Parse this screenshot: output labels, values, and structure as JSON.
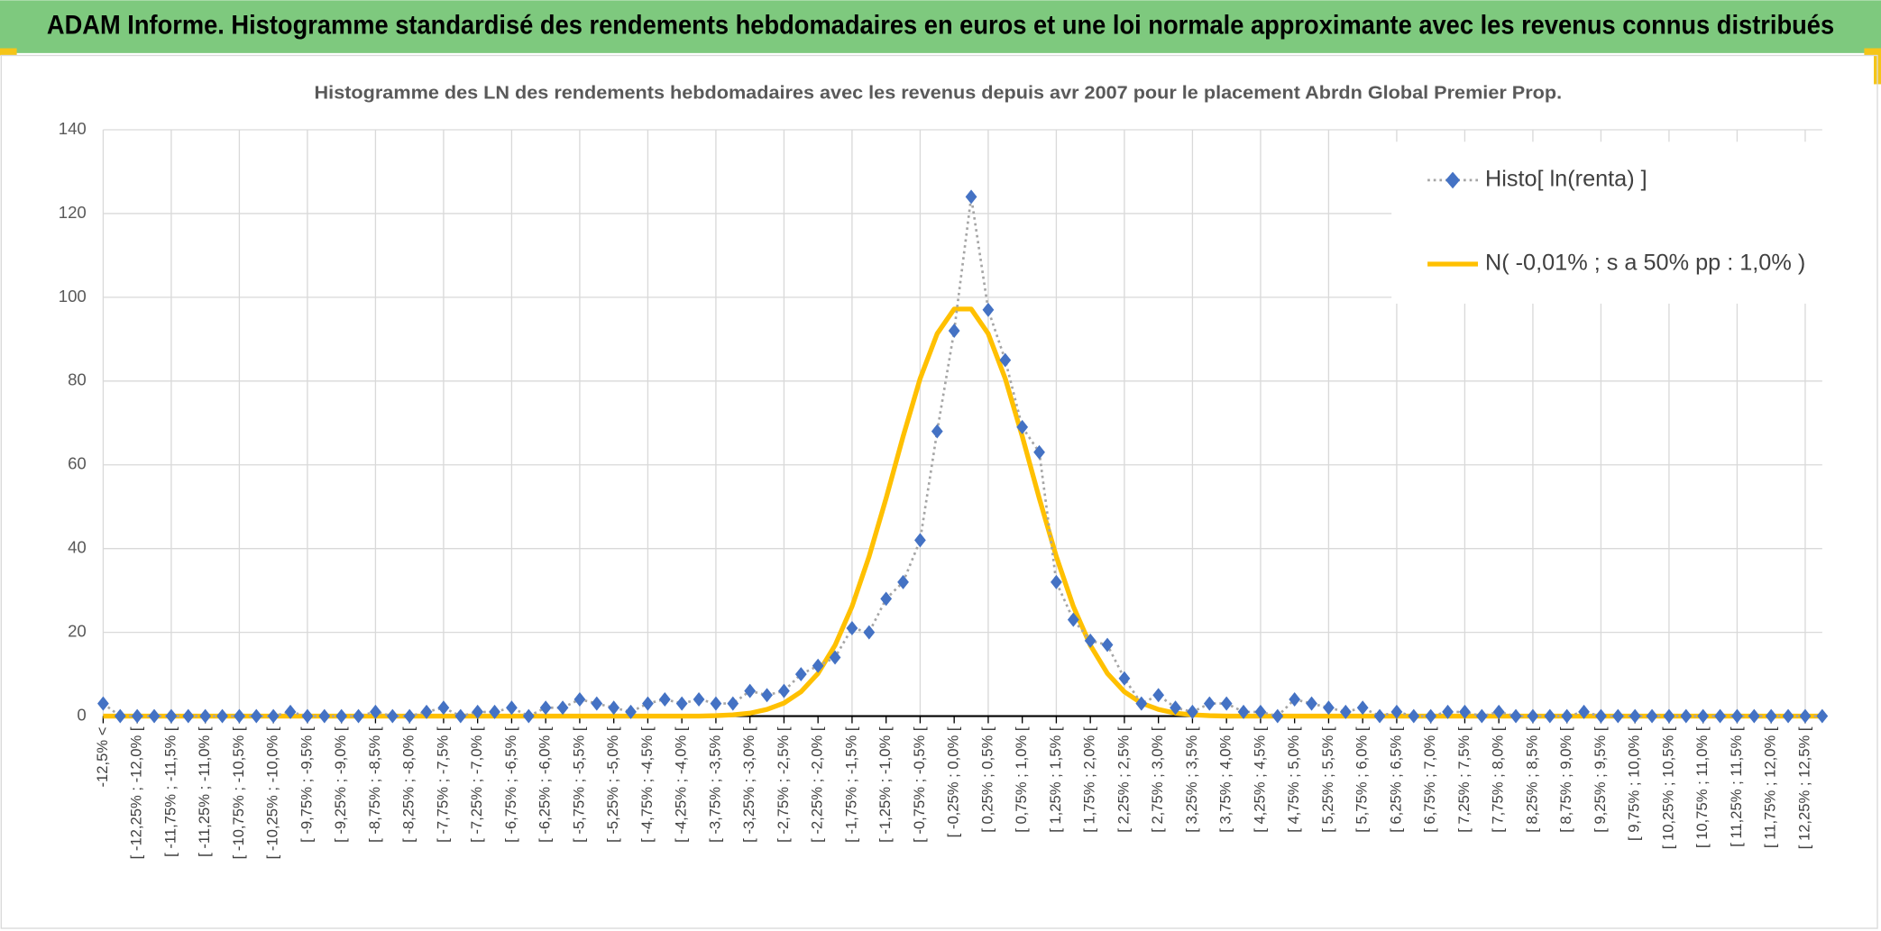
{
  "header": {
    "title": "ADAM Informe. Histogramme standardisé des rendements hebdomadaires en euros et une loi normale approximante avec les revenus connus distribués"
  },
  "chart_data": {
    "type": "line",
    "title": "Histogramme des LN des rendements hebdomadaires avec les revenus depuis avr 2007 pour le placement Abrdn Global Premier Prop.",
    "categories": [
      "-12,5% <",
      null,
      "[ -12,25% ; -12,0% [",
      null,
      "[ -11,75% ; -11,5% [",
      null,
      "[ -11,25% ; -11,0% [",
      null,
      "[ -10,75% ; -10,5% [",
      null,
      "[ -10,25% ; -10,0% [",
      null,
      "[ -9,75% ; -9,5% [",
      null,
      "[ -9,25% ; -9,0% [",
      null,
      "[ -8,75% ; -8,5% [",
      null,
      "[ -8,25% ; -8,0% [",
      null,
      "[ -7,75% ; -7,5% [",
      null,
      "[ -7,25% ; -7,0% [",
      null,
      "[ -6,75% ; -6,5% [",
      null,
      "[ -6,25% ; -6,0% [",
      null,
      "[ -5,75% ; -5,5% [",
      null,
      "[ -5,25% ; -5,0% [",
      null,
      "[ -4,75% ; -4,5% [",
      null,
      "[ -4,25% ; -4,0% [",
      null,
      "[ -3,75% ; -3,5% [",
      null,
      "[ -3,25% ; -3,0% [",
      null,
      "[ -2,75% ; -2,5% [",
      null,
      "[ -2,25% ; -2,0% [",
      null,
      "[ -1,75% ; -1,5% [",
      null,
      "[ -1,25% ; -1,0% [",
      null,
      "[ -0,75% ; -0,5% [",
      null,
      "[ -0,25% ; 0,0% [",
      null,
      "[ 0,25% ; 0,5% [",
      null,
      "[ 0,75% ; 1,0% [",
      null,
      "[ 1,25% ; 1,5% [",
      null,
      "[ 1,75% ; 2,0% [",
      null,
      "[ 2,25% ; 2,5% [",
      null,
      "[ 2,75% ; 3,0% [",
      null,
      "[ 3,25% ; 3,5% [",
      null,
      "[ 3,75% ; 4,0% [",
      null,
      "[ 4,25% ; 4,5% [",
      null,
      "[ 4,75% ; 5,0% [",
      null,
      "[ 5,25% ; 5,5% [",
      null,
      "[ 5,75% ; 6,0% [",
      null,
      "[ 6,25% ; 6,5% [",
      null,
      "[ 6,75% ; 7,0% [",
      null,
      "[ 7,25% ; 7,5% [",
      null,
      "[ 7,75% ; 8,0% [",
      null,
      "[ 8,25% ; 8,5% [",
      null,
      "[ 8,75% ; 9,0% [",
      null,
      "[ 9,25% ; 9,5% [",
      null,
      "[ 9,75% ; 10,0% [",
      null,
      "[ 10,25% ; 10,5% [",
      null,
      "[ 10,75% ; 11,0% [",
      null,
      "[ 11,25% ; 11,5% [",
      null,
      "[ 11,75% ; 12,0% [",
      null,
      "[ 12,25% ; 12,5% [",
      null
    ],
    "series": [
      {
        "name": "Histo[ ln(renta) ]",
        "color": "#4472c4",
        "line_color": "#a5a5a5",
        "line_style": "dotted",
        "marker": "diamond",
        "values": [
          3,
          0,
          0,
          0,
          0,
          0,
          0,
          0,
          0,
          0,
          0,
          1,
          0,
          0,
          0,
          0,
          1,
          0,
          0,
          1,
          2,
          0,
          1,
          1,
          2,
          0,
          2,
          2,
          4,
          3,
          2,
          1,
          3,
          4,
          3,
          4,
          3,
          3,
          6,
          5,
          6,
          10,
          12,
          14,
          21,
          20,
          28,
          32,
          42,
          68,
          92,
          124,
          97,
          85,
          69,
          63,
          32,
          23,
          18,
          17,
          9,
          3,
          5,
          2,
          1,
          3,
          3,
          1,
          1,
          0,
          4,
          3,
          2,
          1,
          2,
          0,
          1,
          0,
          0,
          1,
          1,
          0,
          1,
          0,
          0,
          0,
          0,
          1,
          0,
          0,
          0,
          0,
          0,
          0,
          0,
          0,
          0,
          0,
          0,
          0,
          0,
          0
        ]
      },
      {
        "name": "N( -0,01% ; s a 50% pp : 1,0% )",
        "color": "#ffc000",
        "line_style": "solid",
        "marker": "none",
        "values": [
          0,
          0,
          0,
          0,
          0,
          0,
          0,
          0,
          0,
          0,
          0,
          0,
          0,
          0,
          0,
          0,
          0,
          0,
          0,
          0,
          0,
          0,
          0,
          0,
          0,
          0,
          0,
          0,
          0,
          0,
          0,
          0,
          0,
          0,
          0,
          0,
          0.1,
          0.3,
          0.7,
          1.6,
          3.1,
          5.8,
          10.2,
          16.9,
          26.2,
          38.1,
          52.0,
          66.8,
          80.6,
          91.3,
          97.2,
          97.2,
          91.3,
          80.6,
          66.8,
          52.0,
          38.1,
          26.2,
          16.9,
          10.2,
          5.8,
          3.1,
          1.6,
          0.7,
          0.3,
          0.1,
          0,
          0,
          0,
          0,
          0,
          0,
          0,
          0,
          0,
          0,
          0,
          0,
          0,
          0,
          0,
          0,
          0,
          0,
          0,
          0,
          0,
          0,
          0,
          0,
          0,
          0,
          0,
          0,
          0,
          0,
          0,
          0,
          0,
          0,
          0,
          0
        ]
      }
    ],
    "ylim": [
      0,
      140
    ],
    "yticks": [
      0,
      20,
      40,
      60,
      80,
      100,
      120,
      140
    ],
    "grid": true,
    "legend": "upper right"
  }
}
